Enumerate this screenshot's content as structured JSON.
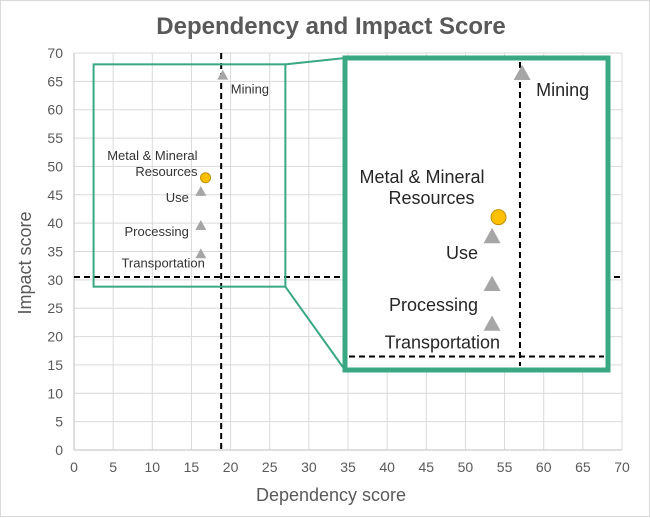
{
  "chart_data": {
    "type": "scatter",
    "title": "Dependency and Impact Score",
    "xlabel": "Dependency score",
    "ylabel": "Impact score",
    "xlim": [
      0,
      70
    ],
    "ylim": [
      0,
      70
    ],
    "x_ticks": [
      "0",
      "5",
      "10",
      "15",
      "20",
      "25",
      "30",
      "35",
      "40",
      "45",
      "50",
      "55",
      "60",
      "65",
      "70"
    ],
    "y_ticks": [
      "0",
      "5",
      "10",
      "15",
      "20",
      "25",
      "30",
      "35",
      "40",
      "45",
      "50",
      "55",
      "60",
      "65",
      "70"
    ],
    "grid": true,
    "reference_lines": {
      "x": 18.8,
      "y": 30.5
    },
    "points": [
      {
        "name": "Mining",
        "x": 19.0,
        "y": 66.0,
        "marker": "triangle",
        "color": "#a6a6a6"
      },
      {
        "name": "Metal & Mineral Resources",
        "x": 16.8,
        "y": 48.0,
        "marker": "circle",
        "color": "#ffc000"
      },
      {
        "name": "Use",
        "x": 16.2,
        "y": 45.5,
        "marker": "triangle",
        "color": "#a6a6a6"
      },
      {
        "name": "Processing",
        "x": 16.2,
        "y": 39.5,
        "marker": "triangle",
        "color": "#a6a6a6"
      },
      {
        "name": "Transportation",
        "x": 16.2,
        "y": 34.5,
        "marker": "triangle",
        "color": "#a6a6a6"
      }
    ],
    "zoom_window": {
      "xrange": [
        2.5,
        27.0
      ],
      "yrange": [
        28.8,
        68.0
      ]
    },
    "colors": {
      "zoom_frame": "#3aa882",
      "grid": "#d9d9d9",
      "axis": "#bfbfbf",
      "ref_line": "#000000"
    }
  }
}
